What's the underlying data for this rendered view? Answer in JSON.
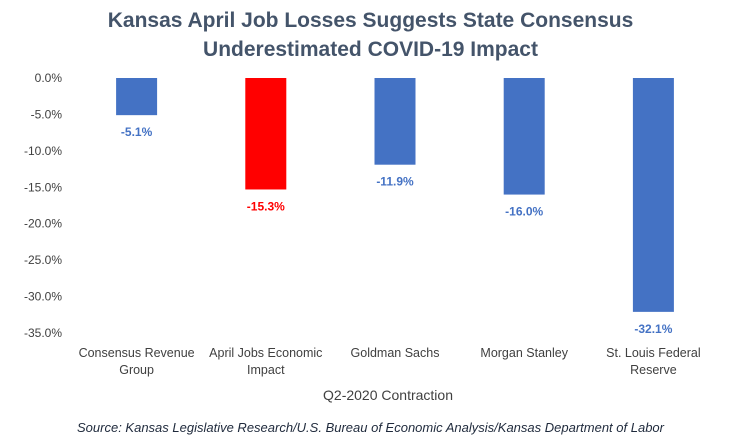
{
  "chart_data": {
    "type": "bar",
    "title_lines": [
      "Kansas April Job Losses Suggests State Consensus",
      "Underestimated COVID-19 Impact"
    ],
    "categories": [
      [
        "Consensus Revenue",
        "Group"
      ],
      [
        "April Jobs Economic",
        "Impact"
      ],
      [
        "Goldman Sachs"
      ],
      [
        "Morgan Stanley"
      ],
      [
        "St. Louis Federal",
        "Reserve"
      ]
    ],
    "values": [
      -5.1,
      -15.3,
      -11.9,
      -16.0,
      -32.1
    ],
    "data_labels": [
      "-5.1%",
      "-15.3%",
      "-11.9%",
      "-16.0%",
      "-32.1%"
    ],
    "bar_colors": [
      "#4472c4",
      "#ff0000",
      "#4472c4",
      "#4472c4",
      "#4472c4"
    ],
    "label_colors": [
      "#4472c4",
      "#ff0000",
      "#4472c4",
      "#4472c4",
      "#4472c4"
    ],
    "y_ticks": [
      0,
      -5,
      -10,
      -15,
      -20,
      -25,
      -30,
      -35
    ],
    "y_tick_labels": [
      "0.0%",
      "-5.0%",
      "-10.0%",
      "-15.0%",
      "-20.0%",
      "-25.0%",
      "-30.0%",
      "-35.0%"
    ],
    "ylim": [
      -35,
      0
    ],
    "xlabel": "Q2-2020 Contraction",
    "ylabel": "",
    "grid": false,
    "legend": "none"
  },
  "source": "Source: Kansas Legislative Research/U.S. Bureau of Economic Analysis/Kansas Department of Labor"
}
